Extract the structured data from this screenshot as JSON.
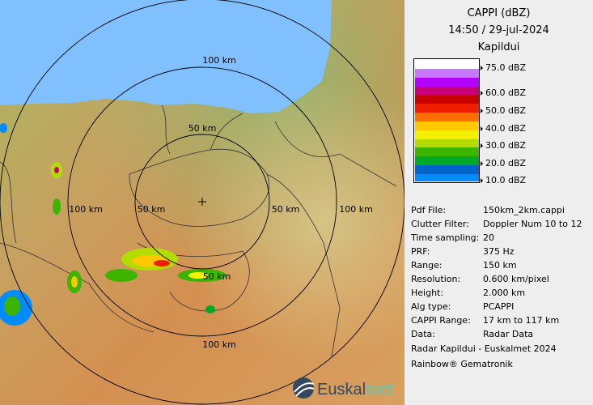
{
  "map": {
    "ring_labels": [
      "50 km",
      "100 km"
    ],
    "logo_text": "Euskalmet",
    "sea_color": "#80c0ff"
  },
  "panel": {
    "title": "CAPPI (dBZ)",
    "datetime": "14:50 / 29-jul-2024",
    "site": "Kapildui",
    "legend": {
      "bands": [
        "#ffffff",
        "#c878ff",
        "#b400ff",
        "#c80078",
        "#c80000",
        "#f01e00",
        "#ff6e00",
        "#ffc800",
        "#f5f000",
        "#b4dc00",
        "#3cb400",
        "#00aa28",
        "#0064c8",
        "#008cff"
      ],
      "ticks": [
        "75.0 dBZ",
        "60.0 dBZ",
        "50.0 dBZ",
        "40.0 dBZ",
        "30.0 dBZ",
        "20.0 dBZ",
        "10.0 dBZ"
      ]
    },
    "info": [
      {
        "k": "Pdf File:",
        "v": "150km_2km.cappi"
      },
      {
        "k": "Clutter Filter:",
        "v": "Doppler Num 10 to 12"
      },
      {
        "k": "Time sampling:",
        "v": "20"
      },
      {
        "k": "PRF:",
        "v": "375 Hz"
      },
      {
        "k": "Range:",
        "v": "150 km"
      },
      {
        "k": "Resolution:",
        "v": "0.600 km/pixel"
      },
      {
        "k": "Height:",
        "v": "2.000 km"
      },
      {
        "k": "Alg type:",
        "v": "PCAPPI"
      },
      {
        "k": "CAPPI Range:",
        "v": "17 km to 117 km"
      },
      {
        "k": "Data:",
        "v": "Radar Data"
      }
    ],
    "footer1": "Radar Kapildui - Euskalmet 2024",
    "footer2": "Rainbow® Gematronik"
  }
}
